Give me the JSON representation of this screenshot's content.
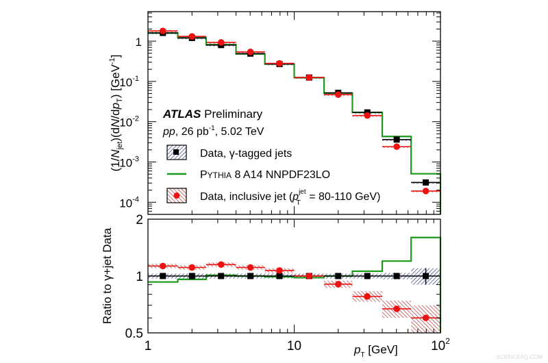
{
  "chart_data": [
    {
      "type": "line",
      "panel": "main",
      "x_scale": "log",
      "y_scale": "log",
      "xlim": [
        1,
        100
      ],
      "ylim": [
        5e-05,
        5.4
      ],
      "ylabel": "(1/N_jet)(dN/dp_T) [GeV^-1]",
      "ylabel_parts": {
        "a": "(1/",
        "N": "N",
        "jet": "jet",
        "b": ")(d",
        "N2": "N",
        "c": "/d",
        "p": "p",
        "T": "T",
        "d": ") [GeV",
        "exp": "-1",
        "e": "]"
      },
      "y_ticks": [
        {
          "base": "1",
          "exp": "",
          "value": 1
        },
        {
          "base": "10",
          "exp": "-1",
          "value": 0.1
        },
        {
          "base": "10",
          "exp": "-2",
          "value": 0.01
        },
        {
          "base": "10",
          "exp": "-3",
          "value": 0.001
        },
        {
          "base": "10",
          "exp": "-4",
          "value": 0.0001
        }
      ],
      "bin_edges": [
        1,
        1.6,
        2.5,
        4,
        6.3,
        10,
        16,
        25,
        40,
        63,
        100
      ],
      "series": [
        {
          "name": "Data, γ-tagged jets",
          "style": "black-square-hatched-blue",
          "values": [
            1.6,
            1.2,
            0.8,
            0.49,
            0.27,
            0.125,
            0.052,
            0.017,
            0.0036,
            0.00031
          ]
        },
        {
          "name": "Pythia 8 A14 NNPDF23LO",
          "style": "green-step",
          "values": [
            1.59,
            1.21,
            0.82,
            0.48,
            0.27,
            0.124,
            0.051,
            0.017,
            0.0043,
            0.00051
          ]
        },
        {
          "name": "Data, inclusive jet",
          "style": "red-circle-hatched-red",
          "values": [
            1.79,
            1.31,
            0.93,
            0.54,
            0.28,
            0.125,
            0.047,
            0.0142,
            0.0024,
            0.00019
          ]
        }
      ],
      "annotations": {
        "experiment": "ATLAS",
        "status": "Preliminary",
        "pp": "pp",
        "lumi_a": ", 26 pb",
        "lumi_exp": "-1",
        "lumi_b": ", 5.02 TeV"
      },
      "legend": {
        "placement": "bottom-left",
        "entries": [
          {
            "label": "Data, γ-tagged jets"
          },
          {
            "label_p": "P",
            "label_ythia": "YTHIA",
            "label_rest": " 8 A14 NNPDF23LO"
          },
          {
            "label_a": "Data, inclusive jet (",
            "label_p": "p",
            "label_sup": "jet",
            "label_sub": "T",
            "label_b": " = 80-110 GeV)"
          }
        ]
      }
    },
    {
      "type": "line",
      "panel": "ratio",
      "x_scale": "log",
      "y_scale": "log",
      "xlim": [
        1,
        100
      ],
      "ylim": [
        0.5,
        2
      ],
      "ylabel": "Ratio to γ+jet Data",
      "xlabel_p": "p",
      "xlabel_T": "T",
      "xlabel_rest": " [GeV]",
      "y_ticks": [
        "2",
        "1",
        "0.5"
      ],
      "x_ticks": [
        {
          "base": "1",
          "exp": ""
        },
        {
          "base": "10",
          "exp": ""
        },
        {
          "base": "10",
          "exp": "2"
        }
      ],
      "bin_edges": [
        1,
        1.6,
        2.5,
        4,
        6.3,
        10,
        16,
        25,
        40,
        63,
        100
      ],
      "series": [
        {
          "style": "black-square-hatched-blue",
          "values": [
            1,
            1,
            1,
            1,
            1,
            1,
            1,
            1,
            1,
            1
          ],
          "band": [
            0.03,
            0.03,
            0.03,
            0.03,
            0.03,
            0.03,
            0.03,
            0.03,
            0.04,
            0.1
          ]
        },
        {
          "style": "green-step",
          "values": [
            0.93,
            0.96,
            1.01,
            1.0,
            0.99,
            0.98,
            1.0,
            1.06,
            1.2,
            1.6
          ]
        },
        {
          "style": "red-circle-hatched-red",
          "values": [
            1.13,
            1.11,
            1.15,
            1.11,
            1.07,
            1.0,
            0.905,
            0.78,
            0.67,
            0.6
          ],
          "band": [
            0.03,
            0.03,
            0.03,
            0.03,
            0.03,
            0.02,
            0.04,
            0.05,
            0.07,
            0.1
          ]
        }
      ]
    }
  ],
  "colors": {
    "data_gamma": "#000000",
    "band_gamma": "#1f2a7a",
    "pythia": "#1a9a1a",
    "data_incl": "#ee1111",
    "band_incl": "#b22222"
  },
  "watermark": "SCIENCEAQ.COM"
}
